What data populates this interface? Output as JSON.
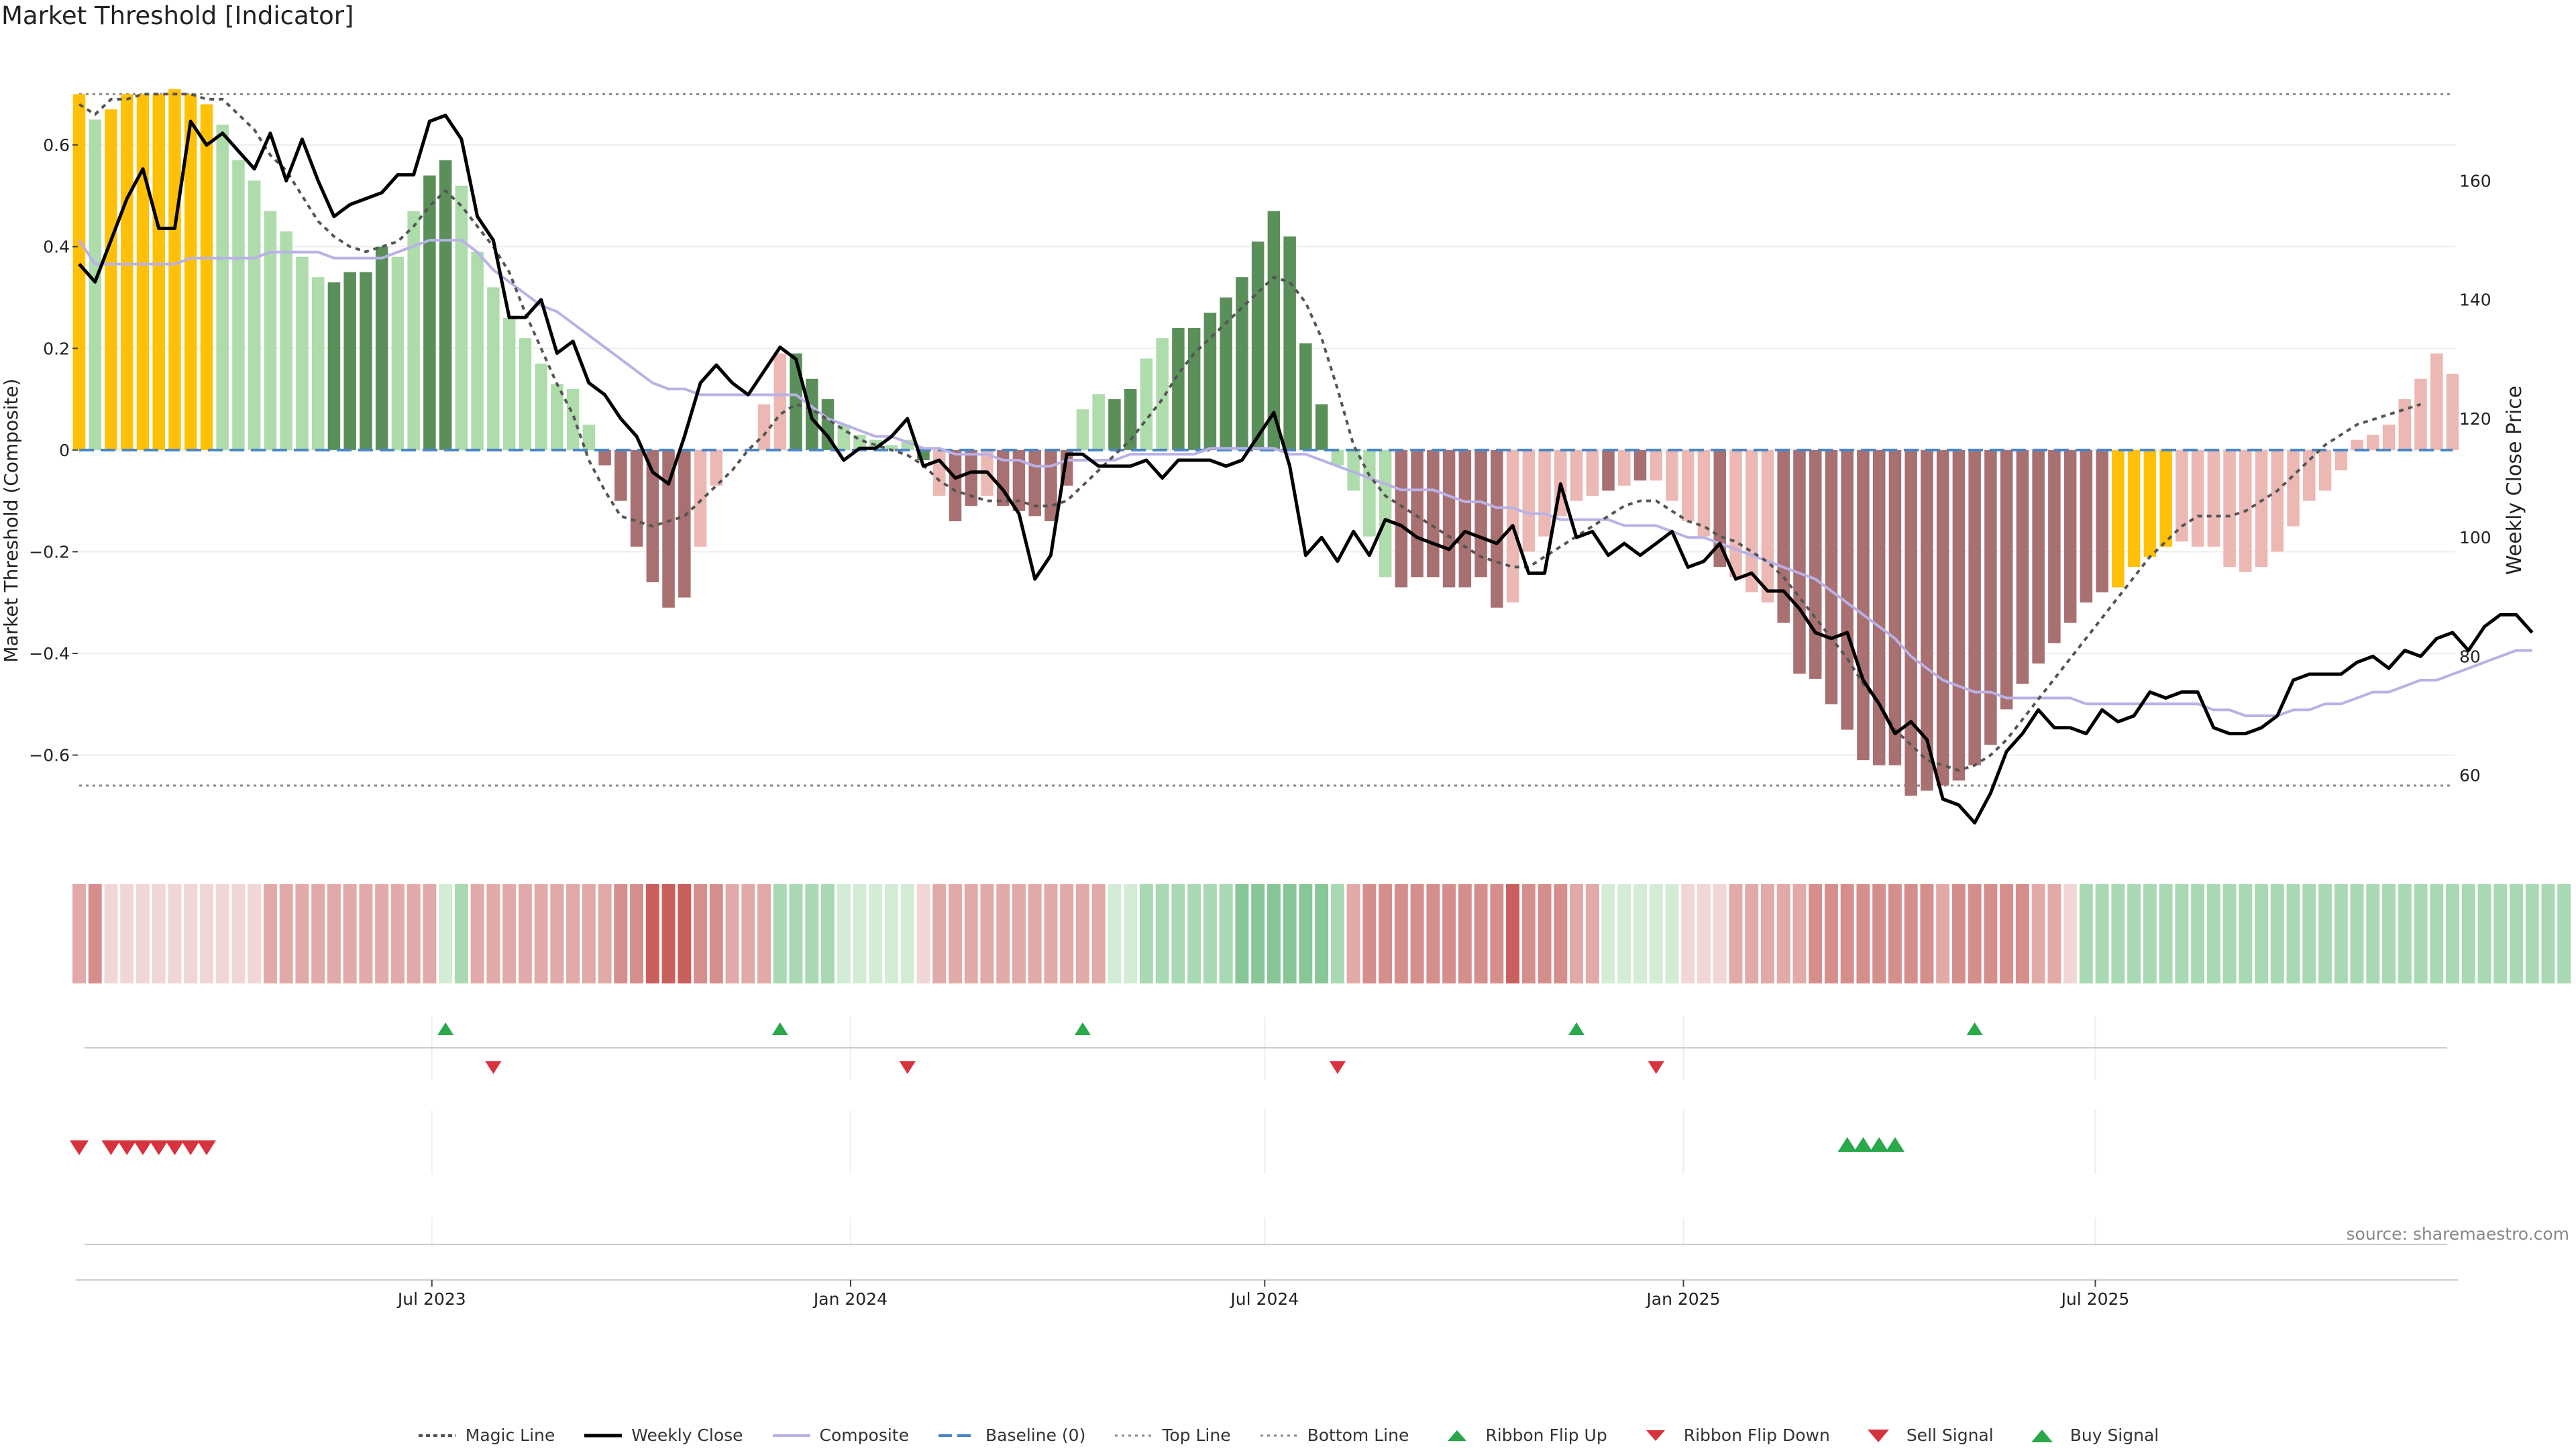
{
  "title": "Market Threshold [Indicator]",
  "source": "source: sharemaestro.com",
  "colors": {
    "extreme": "#ffc107",
    "pos_strong": "#5a8f5a",
    "pos_weak": "#aedcaa",
    "neg_strong": "#a87070",
    "neg_weak": "#ecb8b4",
    "magic": "#555555",
    "close": "#000000",
    "composite": "#b9b1e6",
    "baseline": "#4a86c8",
    "ref_line": "#888888",
    "buy": "#2aa84a",
    "sell": "#d6333e"
  },
  "chart_data": {
    "type": "bar",
    "title": "Market Threshold [Indicator]",
    "start_date": "2023-01-27",
    "x_ticks": [
      "Jul 2023",
      "Jan 2024",
      "Jul 2024",
      "Jan 2025",
      "Jul 2025"
    ],
    "x_tick_dates": [
      "2023-07-01",
      "2024-01-01",
      "2024-07-01",
      "2025-01-01",
      "2025-07-01"
    ],
    "y_left": {
      "label": "Market Threshold (Composite)",
      "ylim": [
        -0.78,
        0.74
      ],
      "ticks": [
        -0.6,
        -0.4,
        -0.2,
        0,
        0.2,
        0.4,
        0.6
      ]
    },
    "y_right": {
      "label": "Weekly Close Price",
      "ylim": [
        48,
        178
      ],
      "ticks": [
        60,
        80,
        100,
        120,
        140,
        160
      ]
    },
    "top_line": 0.7,
    "bottom_line": -0.66,
    "composite": [
      0.7,
      0.65,
      0.67,
      0.7,
      0.7,
      0.7,
      0.71,
      0.7,
      0.68,
      0.64,
      0.57,
      0.53,
      0.47,
      0.43,
      0.38,
      0.34,
      0.33,
      0.35,
      0.35,
      0.4,
      0.38,
      0.47,
      0.54,
      0.57,
      0.52,
      0.39,
      0.32,
      0.26,
      0.22,
      0.17,
      0.13,
      0.12,
      0.05,
      -0.03,
      -0.1,
      -0.19,
      -0.26,
      -0.31,
      -0.29,
      -0.19,
      -0.07,
      0.0,
      0.0,
      0.09,
      0.19,
      0.19,
      0.14,
      0.1,
      0.05,
      0.03,
      0.02,
      0.01,
      0.02,
      -0.02,
      -0.09,
      -0.14,
      -0.11,
      -0.09,
      -0.11,
      -0.12,
      -0.13,
      -0.14,
      -0.07,
      0.08,
      0.11,
      0.1,
      0.12,
      0.18,
      0.22,
      0.24,
      0.24,
      0.27,
      0.3,
      0.34,
      0.41,
      0.47,
      0.42,
      0.21,
      0.09,
      -0.03,
      -0.08,
      -0.17,
      -0.25,
      -0.27,
      -0.25,
      -0.25,
      -0.27,
      -0.27,
      -0.25,
      -0.31,
      -0.3,
      -0.2,
      -0.17,
      -0.13,
      -0.1,
      -0.09,
      -0.08,
      -0.07,
      -0.06,
      -0.06,
      -0.1,
      -0.14,
      -0.17,
      -0.23,
      -0.25,
      -0.28,
      -0.3,
      -0.34,
      -0.44,
      -0.45,
      -0.5,
      -0.55,
      -0.61,
      -0.62,
      -0.62,
      -0.68,
      -0.67,
      -0.66,
      -0.65,
      -0.62,
      -0.58,
      -0.51,
      -0.46,
      -0.42,
      -0.38,
      -0.34,
      -0.3,
      -0.28,
      -0.27,
      -0.23,
      -0.21,
      -0.19,
      -0.18,
      -0.19,
      -0.19,
      -0.23,
      -0.24,
      -0.23,
      -0.2,
      -0.15,
      -0.1,
      -0.08,
      -0.04,
      0.02,
      0.03,
      0.05,
      0.1,
      0.14,
      0.19,
      0.15
    ],
    "bar_colors": "YLYYYYYYYLLLLLLLDDDDLLDDLLLLLLLLLRRRRRRPPPPPPDDDLLLLLDPRRPRRRRRLLDDLLDDDDDDDDDDLLLLRRRRRRRPPPPPPRPRPPPPRPPPRRRRRRRRRRRRRRRRRRRRRYYYYPPPPPPPPPPPPPPPPPPPPRRPPPPPPPPPPLDDDLDDL",
    "magic_line": [
      0.68,
      0.66,
      0.69,
      0.69,
      0.7,
      0.7,
      0.7,
      0.7,
      0.69,
      0.69,
      0.66,
      0.63,
      0.58,
      0.55,
      0.5,
      0.45,
      0.42,
      0.4,
      0.39,
      0.4,
      0.41,
      0.44,
      0.48,
      0.51,
      0.48,
      0.44,
      0.4,
      0.35,
      0.27,
      0.2,
      0.13,
      0.07,
      -0.02,
      -0.08,
      -0.13,
      -0.14,
      -0.15,
      -0.14,
      -0.13,
      -0.1,
      -0.07,
      -0.04,
      0.0,
      0.03,
      0.07,
      0.09,
      0.08,
      0.06,
      0.04,
      0.02,
      0.01,
      0.0,
      -0.01,
      -0.03,
      -0.06,
      -0.08,
      -0.09,
      -0.1,
      -0.1,
      -0.1,
      -0.11,
      -0.11,
      -0.1,
      -0.07,
      -0.04,
      -0.01,
      0.02,
      0.06,
      0.1,
      0.15,
      0.19,
      0.22,
      0.25,
      0.28,
      0.31,
      0.34,
      0.33,
      0.29,
      0.22,
      0.12,
      0.01,
      -0.05,
      -0.09,
      -0.11,
      -0.13,
      -0.15,
      -0.17,
      -0.19,
      -0.21,
      -0.22,
      -0.23,
      -0.23,
      -0.21,
      -0.19,
      -0.17,
      -0.15,
      -0.13,
      -0.11,
      -0.1,
      -0.1,
      -0.12,
      -0.14,
      -0.15,
      -0.17,
      -0.18,
      -0.2,
      -0.22,
      -0.25,
      -0.29,
      -0.33,
      -0.37,
      -0.41,
      -0.46,
      -0.5,
      -0.55,
      -0.58,
      -0.61,
      -0.62,
      -0.63,
      -0.62,
      -0.6,
      -0.57,
      -0.53,
      -0.49,
      -0.45,
      -0.41,
      -0.37,
      -0.33,
      -0.29,
      -0.25,
      -0.21,
      -0.18,
      -0.15,
      -0.13,
      -0.13,
      -0.13,
      -0.12,
      -0.1,
      -0.08,
      -0.05,
      -0.02,
      0.01,
      0.03,
      0.05,
      0.06,
      0.07,
      0.08,
      0.09
    ],
    "weekly_close": [
      146,
      143,
      150,
      157,
      162,
      152,
      152,
      170,
      166,
      168,
      165,
      162,
      168,
      160,
      167,
      160,
      154,
      156,
      157,
      158,
      161,
      161,
      170,
      171,
      167,
      154,
      150,
      137,
      137,
      140,
      131,
      133,
      126,
      124,
      120,
      117,
      111,
      109,
      117,
      126,
      129,
      126,
      124,
      128,
      132,
      130,
      120,
      117,
      113,
      115,
      115,
      117,
      120,
      112,
      113,
      110,
      111,
      111,
      108,
      104,
      93,
      97,
      114,
      114,
      112,
      112,
      112,
      113,
      110,
      113,
      113,
      113,
      112,
      113,
      117,
      121,
      112,
      97,
      100,
      96,
      101,
      97,
      103,
      102,
      100,
      99,
      98,
      101,
      100,
      99,
      102,
      94,
      94,
      109,
      100,
      101,
      97,
      99,
      97,
      99,
      101,
      95,
      96,
      99,
      93,
      94,
      91,
      91,
      88,
      84,
      83,
      84,
      76,
      72,
      67,
      69,
      66,
      56,
      55,
      52,
      57,
      64,
      67,
      71,
      68,
      68,
      67,
      71,
      69,
      70,
      74,
      73,
      74,
      74,
      68,
      67,
      67,
      68,
      70,
      76,
      77,
      77,
      77,
      79,
      80,
      78,
      81,
      80,
      83,
      84,
      81,
      85,
      87,
      87,
      84
    ],
    "composite_ma": [
      150,
      146,
      146,
      146,
      146,
      146,
      146,
      147,
      147,
      147,
      147,
      147,
      148,
      148,
      148,
      148,
      147,
      147,
      147,
      147,
      148,
      149,
      150,
      150,
      150,
      148,
      145,
      143,
      141,
      139,
      138,
      136,
      134,
      132,
      130,
      128,
      126,
      125,
      125,
      124,
      124,
      124,
      124,
      124,
      124,
      124,
      122,
      120,
      119,
      118,
      117,
      117,
      116,
      115,
      115,
      114,
      114,
      114,
      113,
      113,
      112,
      112,
      113,
      113,
      113,
      113,
      114,
      114,
      114,
      114,
      114,
      115,
      115,
      115,
      115,
      115,
      114,
      114,
      113,
      112,
      111,
      110,
      109,
      108,
      108,
      108,
      107,
      106,
      106,
      105,
      105,
      104,
      104,
      103,
      103,
      103,
      103,
      102,
      102,
      102,
      101,
      100,
      100,
      99,
      98,
      97,
      96,
      95,
      94,
      93,
      91,
      89,
      87,
      85,
      83,
      80,
      78,
      76,
      75,
      74,
      74,
      73,
      73,
      73,
      73,
      73,
      72,
      72,
      72,
      72,
      72,
      72,
      72,
      72,
      71,
      71,
      70,
      70,
      70,
      71,
      71,
      72,
      72,
      73,
      74,
      74,
      75,
      76,
      76,
      77,
      78,
      79,
      80,
      81,
      81
    ],
    "ribbon": [
      -2,
      -3,
      -1,
      -1,
      -1,
      -1,
      -1,
      -1,
      -1,
      -1,
      -1,
      -1,
      -2,
      -2,
      -2,
      -2,
      -2,
      -2,
      -2,
      -2,
      -2,
      -2,
      -2,
      1,
      2,
      -2,
      -2,
      -2,
      -2,
      -2,
      -2,
      -2,
      -2,
      -2,
      -3,
      -3,
      -4,
      -4,
      -4,
      -3,
      -3,
      -2,
      -2,
      -2,
      2,
      2,
      2,
      2,
      1,
      1,
      1,
      1,
      1,
      -1,
      -2,
      -2,
      -2,
      -2,
      -2,
      -2,
      -2,
      -2,
      -2,
      -2,
      -2,
      1,
      1,
      2,
      2,
      2,
      2,
      2,
      2,
      3,
      3,
      3,
      3,
      3,
      3,
      2,
      -2,
      -3,
      -3,
      -3,
      -3,
      -3,
      -3,
      -3,
      -3,
      -3,
      -4,
      -3,
      -3,
      -3,
      -2,
      -2,
      1,
      1,
      1,
      1,
      1,
      -1,
      -1,
      -1,
      -2,
      -2,
      -2,
      -2,
      -2,
      -3,
      -3,
      -3,
      -3,
      -3,
      -3,
      -3,
      -3,
      -2,
      -3,
      -3,
      -3,
      -3,
      -3,
      -2,
      -2,
      -1,
      2,
      2,
      2,
      2,
      2,
      2,
      2,
      2,
      2,
      2,
      2,
      2,
      2,
      2,
      2,
      2,
      2,
      2,
      2,
      2,
      2,
      2,
      2,
      2,
      2,
      2,
      2,
      2,
      2,
      2,
      2
    ],
    "ribbon_flip_up": [
      23,
      44,
      63,
      94,
      119
    ],
    "ribbon_flip_down": [
      26,
      52,
      79,
      99
    ],
    "sell_signal": [
      0,
      2,
      3,
      4,
      5,
      6,
      7,
      8
    ],
    "buy_signal": [
      111,
      112,
      113,
      114
    ],
    "legend": [
      "Magic Line",
      "Weekly Close",
      "Composite",
      "Baseline (0)",
      "Top Line",
      "Bottom Line",
      "Ribbon Flip Up",
      "Ribbon Flip Down",
      "Sell Signal",
      "Buy Signal"
    ]
  }
}
